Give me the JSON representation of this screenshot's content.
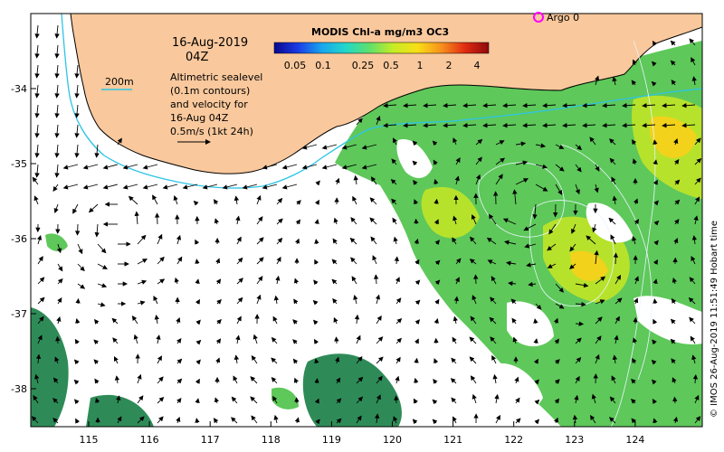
{
  "map": {
    "date_line": "16-Aug-2019",
    "time_line": "04Z",
    "contour_label": "200m",
    "altimetry_lines": [
      "Altimetric sealevel",
      "(0.1m contours)",
      "and velocity for",
      "16-Aug 04Z",
      "0.5m/s (1kt 24h)"
    ],
    "argo_label": "Argo 0",
    "credit": "© IMOS 26-Aug-2019 11:51:49 Hobart time",
    "colors": {
      "land": "#f9c89c",
      "coast": "#000000",
      "isobath_200m": "#2ec4e6",
      "argo_marker": "#ff00ff",
      "chl_low": "#2e8b57",
      "chl_mid": "#5ec85a",
      "chl_high": "#b7e22c",
      "chl_very_high": "#f2d21b"
    }
  },
  "colorbar": {
    "title": "MODIS Chl-a mg/m3 OC3",
    "tick_labels": [
      "0.05",
      "0.1",
      "0.25",
      "0.5",
      "1",
      "2",
      "4"
    ],
    "stops": [
      "#08088c",
      "#1a3ce6",
      "#19a6ee",
      "#22d7c9",
      "#5fe06a",
      "#c7ec25",
      "#f8df16",
      "#f7921c",
      "#e22b12",
      "#8c0a0a"
    ]
  },
  "axes": {
    "x_ticks": [
      "115",
      "116",
      "117",
      "118",
      "119",
      "120",
      "121",
      "122",
      "123",
      "124"
    ],
    "y_ticks": [
      "-34",
      "-35",
      "-36",
      "-37",
      "-38"
    ]
  }
}
